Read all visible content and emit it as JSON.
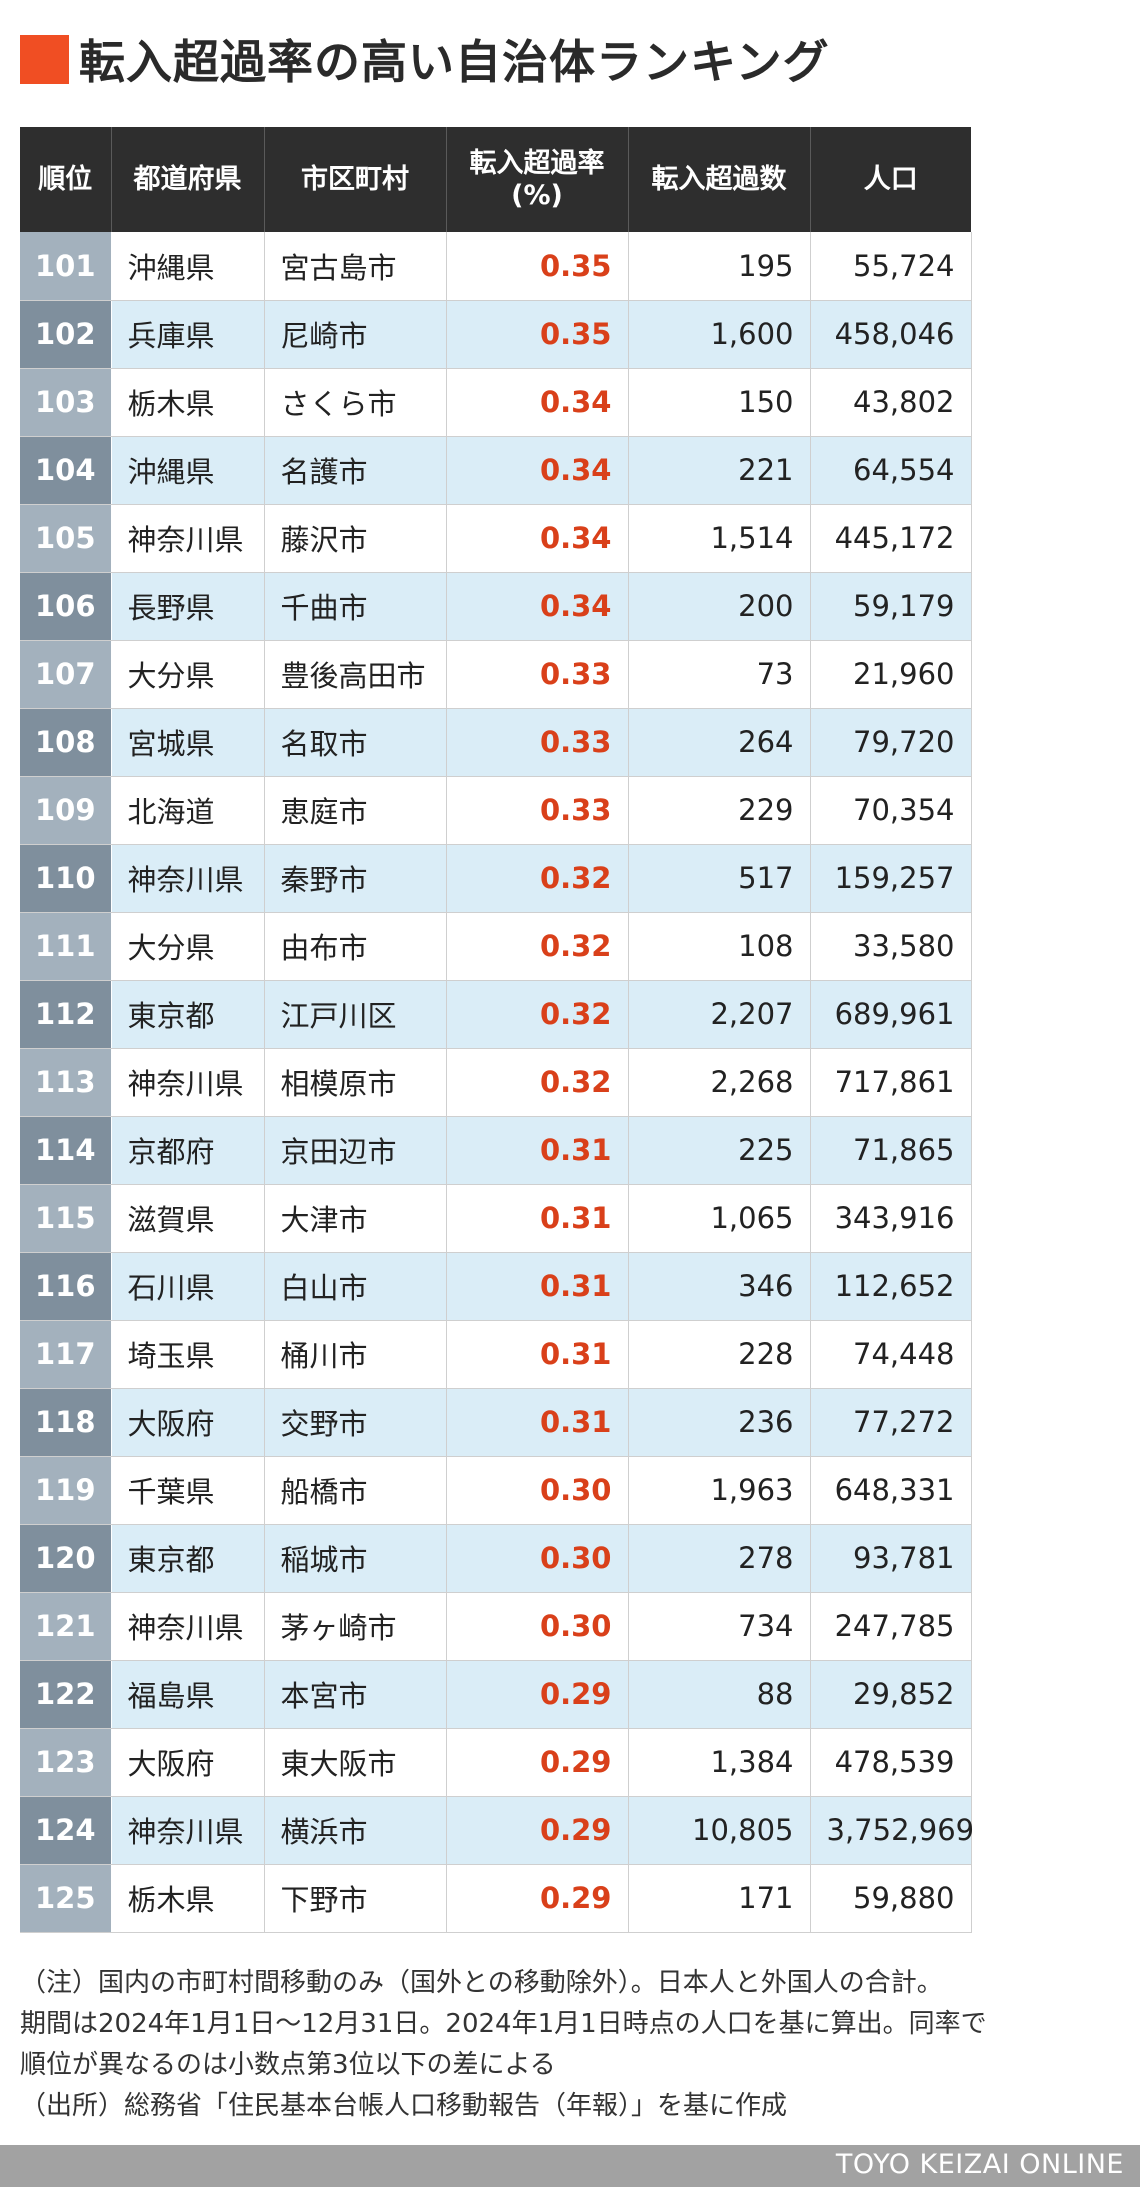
{
  "title": "転入超過率の高い自治体ランキング",
  "headers": [
    "順位",
    "都道府県",
    "市区町村",
    "転入超過率\n(%)",
    "転入超過数",
    "人口"
  ],
  "rows": [
    {
      "rank": "101",
      "pref": "沖縄県",
      "city": "宮古島市",
      "rate": "0.35",
      "count": "195",
      "pop": "55,724"
    },
    {
      "rank": "102",
      "pref": "兵庫県",
      "city": "尼崎市",
      "rate": "0.35",
      "count": "1,600",
      "pop": "458,046"
    },
    {
      "rank": "103",
      "pref": "栃木県",
      "city": "さくら市",
      "rate": "0.34",
      "count": "150",
      "pop": "43,802"
    },
    {
      "rank": "104",
      "pref": "沖縄県",
      "city": "名護市",
      "rate": "0.34",
      "count": "221",
      "pop": "64,554"
    },
    {
      "rank": "105",
      "pref": "神奈川県",
      "city": "藤沢市",
      "rate": "0.34",
      "count": "1,514",
      "pop": "445,172"
    },
    {
      "rank": "106",
      "pref": "長野県",
      "city": "千曲市",
      "rate": "0.34",
      "count": "200",
      "pop": "59,179"
    },
    {
      "rank": "107",
      "pref": "大分県",
      "city": "豊後高田市",
      "rate": "0.33",
      "count": "73",
      "pop": "21,960"
    },
    {
      "rank": "108",
      "pref": "宮城県",
      "city": "名取市",
      "rate": "0.33",
      "count": "264",
      "pop": "79,720"
    },
    {
      "rank": "109",
      "pref": "北海道",
      "city": "恵庭市",
      "rate": "0.33",
      "count": "229",
      "pop": "70,354"
    },
    {
      "rank": "110",
      "pref": "神奈川県",
      "city": "秦野市",
      "rate": "0.32",
      "count": "517",
      "pop": "159,257"
    },
    {
      "rank": "111",
      "pref": "大分県",
      "city": "由布市",
      "rate": "0.32",
      "count": "108",
      "pop": "33,580"
    },
    {
      "rank": "112",
      "pref": "東京都",
      "city": "江戸川区",
      "rate": "0.32",
      "count": "2,207",
      "pop": "689,961"
    },
    {
      "rank": "113",
      "pref": "神奈川県",
      "city": "相模原市",
      "rate": "0.32",
      "count": "2,268",
      "pop": "717,861"
    },
    {
      "rank": "114",
      "pref": "京都府",
      "city": "京田辺市",
      "rate": "0.31",
      "count": "225",
      "pop": "71,865"
    },
    {
      "rank": "115",
      "pref": "滋賀県",
      "city": "大津市",
      "rate": "0.31",
      "count": "1,065",
      "pop": "343,916"
    },
    {
      "rank": "116",
      "pref": "石川県",
      "city": "白山市",
      "rate": "0.31",
      "count": "346",
      "pop": "112,652"
    },
    {
      "rank": "117",
      "pref": "埼玉県",
      "city": "桶川市",
      "rate": "0.31",
      "count": "228",
      "pop": "74,448"
    },
    {
      "rank": "118",
      "pref": "大阪府",
      "city": "交野市",
      "rate": "0.31",
      "count": "236",
      "pop": "77,272"
    },
    {
      "rank": "119",
      "pref": "千葉県",
      "city": "船橋市",
      "rate": "0.30",
      "count": "1,963",
      "pop": "648,331"
    },
    {
      "rank": "120",
      "pref": "東京都",
      "city": "稲城市",
      "rate": "0.30",
      "count": "278",
      "pop": "93,781"
    },
    {
      "rank": "121",
      "pref": "神奈川県",
      "city": "茅ヶ崎市",
      "rate": "0.30",
      "count": "734",
      "pop": "247,785"
    },
    {
      "rank": "122",
      "pref": "福島県",
      "city": "本宮市",
      "rate": "0.29",
      "count": "88",
      "pop": "29,852"
    },
    {
      "rank": "123",
      "pref": "大阪府",
      "city": "東大阪市",
      "rate": "0.29",
      "count": "1,384",
      "pop": "478,539"
    },
    {
      "rank": "124",
      "pref": "神奈川県",
      "city": "横浜市",
      "rate": "0.29",
      "count": "10,805",
      "pop": "3,752,969"
    },
    {
      "rank": "125",
      "pref": "栃木県",
      "city": "下野市",
      "rate": "0.29",
      "count": "171",
      "pop": "59,880"
    }
  ],
  "notes": [
    "（注）国内の市町村間移動のみ（国外との移動除外）。日本人と外国人の合計。",
    "期間は2024年1月1日〜12月31日。2024年1月1日時点の人口を基に算出。同率で",
    "順位が異なるのは小数点第3位以下の差による",
    "（出所）総務省「住民基本台帳人口移動報告（年報）」を基に作成"
  ],
  "footer": "TOYO KEIZAI ONLINE",
  "colors": {
    "accent": "#f04e23",
    "header_bg": "#2e2e2e",
    "rate_text": "#d9401a",
    "row_stripe": "#daedf7",
    "rank_light": "#a3b1bd",
    "rank_dark": "#7f8f9d",
    "footer_bg": "#a2a2a2"
  },
  "chart_data": {
    "type": "table",
    "title": "転入超過率の高い自治体ランキング",
    "columns": [
      "順位",
      "都道府県",
      "市区町村",
      "転入超過率(%)",
      "転入超過数",
      "人口"
    ],
    "rows": [
      [
        101,
        "沖縄県",
        "宮古島市",
        0.35,
        195,
        55724
      ],
      [
        102,
        "兵庫県",
        "尼崎市",
        0.35,
        1600,
        458046
      ],
      [
        103,
        "栃木県",
        "さくら市",
        0.34,
        150,
        43802
      ],
      [
        104,
        "沖縄県",
        "名護市",
        0.34,
        221,
        64554
      ],
      [
        105,
        "神奈川県",
        "藤沢市",
        0.34,
        1514,
        445172
      ],
      [
        106,
        "長野県",
        "千曲市",
        0.34,
        200,
        59179
      ],
      [
        107,
        "大分県",
        "豊後高田市",
        0.33,
        73,
        21960
      ],
      [
        108,
        "宮城県",
        "名取市",
        0.33,
        264,
        79720
      ],
      [
        109,
        "北海道",
        "恵庭市",
        0.33,
        229,
        70354
      ],
      [
        110,
        "神奈川県",
        "秦野市",
        0.32,
        517,
        159257
      ],
      [
        111,
        "大分県",
        "由布市",
        0.32,
        108,
        33580
      ],
      [
        112,
        "東京都",
        "江戸川区",
        0.32,
        2207,
        689961
      ],
      [
        113,
        "神奈川県",
        "相模原市",
        0.32,
        2268,
        717861
      ],
      [
        114,
        "京都府",
        "京田辺市",
        0.31,
        225,
        71865
      ],
      [
        115,
        "滋賀県",
        "大津市",
        0.31,
        1065,
        343916
      ],
      [
        116,
        "石川県",
        "白山市",
        0.31,
        346,
        112652
      ],
      [
        117,
        "埼玉県",
        "桶川市",
        0.31,
        228,
        74448
      ],
      [
        118,
        "大阪府",
        "交野市",
        0.31,
        236,
        77272
      ],
      [
        119,
        "千葉県",
        "船橋市",
        0.3,
        1963,
        648331
      ],
      [
        120,
        "東京都",
        "稲城市",
        0.3,
        278,
        93781
      ],
      [
        121,
        "神奈川県",
        "茅ヶ崎市",
        0.3,
        734,
        247785
      ],
      [
        122,
        "福島県",
        "本宮市",
        0.29,
        88,
        29852
      ],
      [
        123,
        "大阪府",
        "東大阪市",
        0.29,
        1384,
        478539
      ],
      [
        124,
        "神奈川県",
        "横浜市",
        0.29,
        10805,
        3752969
      ],
      [
        125,
        "栃木県",
        "下野市",
        0.29,
        171,
        59880
      ]
    ]
  }
}
